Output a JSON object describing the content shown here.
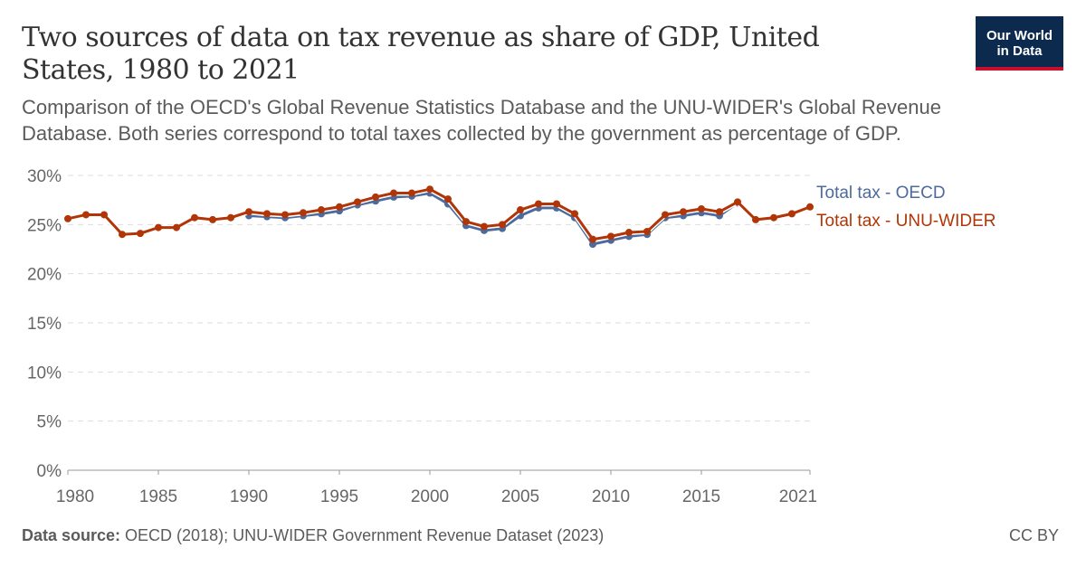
{
  "header": {
    "title": "Two sources of data on tax revenue as share of GDP, United States, 1980 to 2021",
    "subtitle": "Comparison of the OECD's Global Revenue Statistics Database and the UNU-WIDER's Global Revenue Database. Both series correspond to total taxes collected by the government as percentage of GDP.",
    "logo_line1": "Our World",
    "logo_line2": "in Data"
  },
  "footer": {
    "source_label": "Data source:",
    "source": " OECD (2018); UNU-WIDER Government Revenue Dataset (2023)",
    "license": "CC BY"
  },
  "chart_data": {
    "type": "line",
    "title": "",
    "xlabel": "",
    "ylabel": "",
    "ylim": [
      0,
      30
    ],
    "xlim": [
      1980,
      2021
    ],
    "yticks": [
      0,
      5,
      10,
      15,
      20,
      25,
      30
    ],
    "ytick_labels": [
      "0%",
      "5%",
      "10%",
      "15%",
      "20%",
      "25%",
      "30%"
    ],
    "xticks": [
      1980,
      1985,
      1990,
      1995,
      2000,
      2005,
      2010,
      2015,
      2021
    ],
    "xtick_labels": [
      "1980",
      "1985",
      "1990",
      "1995",
      "2000",
      "2005",
      "2010",
      "2015",
      "2021"
    ],
    "grid": "horizontal dashed",
    "legend": "right (line-end labels)",
    "series": [
      {
        "name": "Total tax - OECD",
        "color": "#4c6a9c",
        "x": [
          1990,
          1991,
          1992,
          1993,
          1994,
          1995,
          1996,
          1997,
          1998,
          1999,
          2000,
          2001,
          2002,
          2003,
          2004,
          2005,
          2006,
          2007,
          2008,
          2009,
          2010,
          2011,
          2012,
          2013,
          2014,
          2015,
          2016,
          2017
        ],
        "values": [
          25.9,
          25.8,
          25.7,
          25.9,
          26.1,
          26.4,
          27.0,
          27.4,
          27.8,
          27.9,
          28.2,
          27.1,
          24.9,
          24.4,
          24.6,
          25.9,
          26.7,
          26.7,
          25.7,
          23.0,
          23.4,
          23.8,
          24.0,
          25.7,
          25.9,
          26.2,
          25.9,
          27.2
        ]
      },
      {
        "name": "Total tax - UNU-WIDER",
        "color": "#b13507",
        "x": [
          1980,
          1981,
          1982,
          1983,
          1984,
          1985,
          1986,
          1987,
          1988,
          1989,
          1990,
          1991,
          1992,
          1993,
          1994,
          1995,
          1996,
          1997,
          1998,
          1999,
          2000,
          2001,
          2002,
          2003,
          2004,
          2005,
          2006,
          2007,
          2008,
          2009,
          2010,
          2011,
          2012,
          2013,
          2014,
          2015,
          2016,
          2017,
          2018,
          2019,
          2020,
          2021
        ],
        "values": [
          25.6,
          26.0,
          26.0,
          24.0,
          24.1,
          24.7,
          24.7,
          25.7,
          25.5,
          25.7,
          26.3,
          26.1,
          26.0,
          26.2,
          26.5,
          26.8,
          27.3,
          27.8,
          28.2,
          28.2,
          28.6,
          27.6,
          25.3,
          24.8,
          25.0,
          26.5,
          27.1,
          27.1,
          26.1,
          23.5,
          23.8,
          24.2,
          24.3,
          26.0,
          26.3,
          26.6,
          26.3,
          27.3,
          25.5,
          25.7,
          26.1,
          26.8
        ]
      }
    ]
  }
}
